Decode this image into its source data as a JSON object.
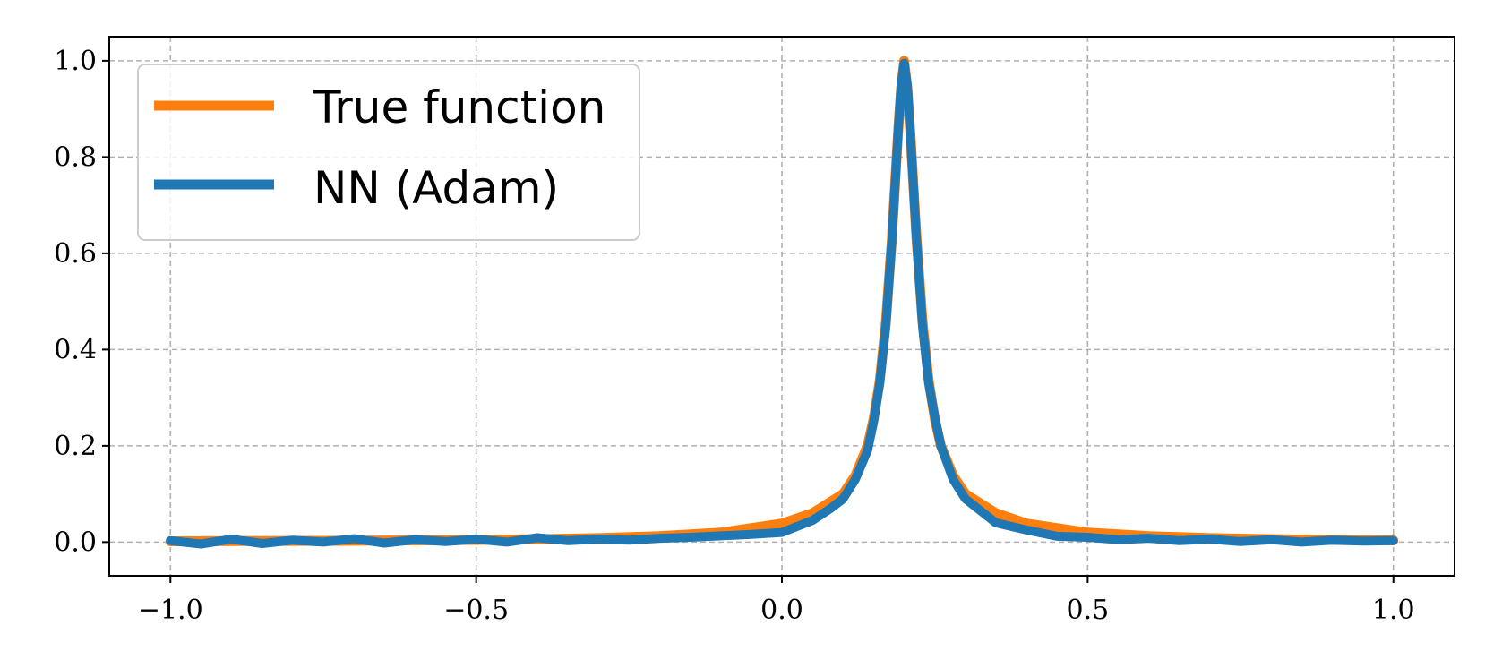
{
  "chart_data": {
    "type": "line",
    "title": "",
    "xlabel": "",
    "ylabel": "",
    "xlim": [
      -1.1,
      1.1
    ],
    "ylim": [
      -0.07,
      1.05
    ],
    "xticks": [
      -1.0,
      -0.5,
      0.0,
      0.5,
      1.0
    ],
    "xtick_labels": [
      "−1.0",
      "−0.5",
      "0.0",
      "0.5",
      "1.0"
    ],
    "yticks": [
      0.0,
      0.2,
      0.4,
      0.6,
      0.8,
      1.0
    ],
    "ytick_labels": [
      "0.0",
      "0.2",
      "0.4",
      "0.6",
      "0.8",
      "1.0"
    ],
    "grid": true,
    "legend_position": "top-left",
    "series": [
      {
        "name": "True function",
        "color": "#ff7f0e",
        "x": [
          -1.0,
          -0.9,
          -0.8,
          -0.7,
          -0.6,
          -0.5,
          -0.4,
          -0.3,
          -0.2,
          -0.1,
          0.0,
          0.05,
          0.1,
          0.12,
          0.14,
          0.15,
          0.16,
          0.17,
          0.18,
          0.19,
          0.195,
          0.2,
          0.205,
          0.21,
          0.22,
          0.23,
          0.24,
          0.25,
          0.26,
          0.28,
          0.3,
          0.35,
          0.4,
          0.5,
          0.6,
          0.7,
          0.8,
          0.9,
          1.0
        ],
        "y": [
          0.0016,
          0.002,
          0.0023,
          0.0028,
          0.0035,
          0.0045,
          0.006,
          0.0084,
          0.0124,
          0.0196,
          0.0385,
          0.06,
          0.1,
          0.1379,
          0.2,
          0.2558,
          0.3346,
          0.4579,
          0.6333,
          0.8511,
          0.9434,
          1.0,
          0.9434,
          0.8511,
          0.6333,
          0.4579,
          0.3346,
          0.2558,
          0.2,
          0.1379,
          0.1,
          0.06,
          0.0385,
          0.0196,
          0.0124,
          0.0084,
          0.006,
          0.0045,
          0.0035
        ]
      },
      {
        "name": "NN (Adam)",
        "color": "#1f77b4",
        "x": [
          -1.0,
          -0.95,
          -0.9,
          -0.85,
          -0.8,
          -0.75,
          -0.7,
          -0.65,
          -0.6,
          -0.55,
          -0.5,
          -0.45,
          -0.4,
          -0.35,
          -0.3,
          -0.25,
          -0.2,
          -0.15,
          -0.1,
          -0.05,
          0.0,
          0.05,
          0.08,
          0.1,
          0.12,
          0.14,
          0.15,
          0.16,
          0.17,
          0.18,
          0.19,
          0.195,
          0.2,
          0.205,
          0.21,
          0.22,
          0.23,
          0.24,
          0.25,
          0.26,
          0.28,
          0.3,
          0.35,
          0.4,
          0.45,
          0.5,
          0.55,
          0.6,
          0.65,
          0.7,
          0.75,
          0.8,
          0.85,
          0.9,
          0.95,
          1.0
        ],
        "y": [
          0.003,
          -0.004,
          0.006,
          -0.003,
          0.004,
          0.0,
          0.007,
          -0.002,
          0.005,
          0.001,
          0.006,
          0.0,
          0.009,
          0.003,
          0.006,
          0.004,
          0.008,
          0.01,
          0.013,
          0.016,
          0.02,
          0.045,
          0.07,
          0.09,
          0.13,
          0.19,
          0.25,
          0.33,
          0.45,
          0.63,
          0.85,
          0.95,
          0.995,
          0.95,
          0.85,
          0.63,
          0.45,
          0.33,
          0.26,
          0.2,
          0.13,
          0.09,
          0.04,
          0.025,
          0.012,
          0.01,
          0.005,
          0.008,
          0.003,
          0.006,
          0.001,
          0.005,
          0.0,
          0.004,
          0.002,
          0.003
        ]
      }
    ]
  }
}
